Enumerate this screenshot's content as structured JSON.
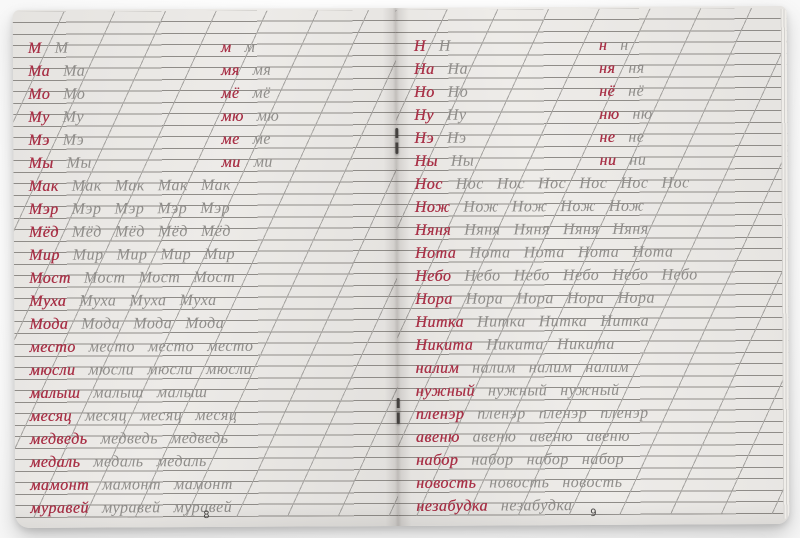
{
  "colors": {
    "red_ink": "#a93147",
    "gray_ink": "#8f8d8a",
    "rule_line": "#8f8c88",
    "slant_line": "#a7a5a2",
    "page_number_color": "#4b4947"
  },
  "book": {
    "description": "Open cursive handwriting practice notebook, letters М and Н",
    "pages": [
      {
        "page_number": "8",
        "rows": [
          {
            "main": {
              "word": "М",
              "copies": 1
            },
            "aside": {
              "word": "м",
              "copies": 1
            }
          },
          {
            "main": {
              "word": "Ма",
              "copies": 1
            },
            "aside": {
              "word": "мя",
              "copies": 1
            }
          },
          {
            "main": {
              "word": "Мо",
              "copies": 1
            },
            "aside": {
              "word": "мё",
              "copies": 1
            }
          },
          {
            "main": {
              "word": "Му",
              "copies": 1
            },
            "aside": {
              "word": "мю",
              "copies": 1
            }
          },
          {
            "main": {
              "word": "Мэ",
              "copies": 1
            },
            "aside": {
              "word": "ме",
              "copies": 1
            }
          },
          {
            "main": {
              "word": "Мы",
              "copies": 1
            },
            "aside": {
              "word": "ми",
              "copies": 1
            }
          },
          {
            "main": {
              "word": "Мак",
              "copies": 4
            }
          },
          {
            "main": {
              "word": "Мэр",
              "copies": 4
            }
          },
          {
            "main": {
              "word": "Мёд",
              "copies": 4
            }
          },
          {
            "main": {
              "word": "Мир",
              "copies": 4
            }
          },
          {
            "main": {
              "word": "Мост",
              "copies": 3
            }
          },
          {
            "main": {
              "word": "Муха",
              "copies": 3
            }
          },
          {
            "main": {
              "word": "Мода",
              "copies": 3
            }
          },
          {
            "main": {
              "word": "место",
              "copies": 3
            }
          },
          {
            "main": {
              "word": "мюсли",
              "copies": 3
            }
          },
          {
            "main": {
              "word": "малыш",
              "copies": 2
            }
          },
          {
            "main": {
              "word": "месяц",
              "copies": 3
            }
          },
          {
            "main": {
              "word": "медведь",
              "copies": 2
            }
          },
          {
            "main": {
              "word": "медаль",
              "copies": 2
            }
          },
          {
            "main": {
              "word": "мамонт",
              "copies": 2
            }
          },
          {
            "main": {
              "word": "муравей",
              "copies": 2
            }
          }
        ]
      },
      {
        "page_number": "9",
        "rows": [
          {
            "main": {
              "word": "Н",
              "copies": 1
            },
            "aside": {
              "word": "н",
              "copies": 1
            }
          },
          {
            "main": {
              "word": "На",
              "copies": 1
            },
            "aside": {
              "word": "ня",
              "copies": 1
            }
          },
          {
            "main": {
              "word": "Но",
              "copies": 1
            },
            "aside": {
              "word": "нё",
              "copies": 1
            }
          },
          {
            "main": {
              "word": "Ну",
              "copies": 1
            },
            "aside": {
              "word": "ню",
              "copies": 1
            }
          },
          {
            "main": {
              "word": "Нэ",
              "copies": 1
            },
            "aside": {
              "word": "не",
              "copies": 1
            }
          },
          {
            "main": {
              "word": "Ны",
              "copies": 1
            },
            "aside": {
              "word": "ни",
              "copies": 1
            }
          },
          {
            "main": {
              "word": "Нос",
              "copies": 6
            }
          },
          {
            "main": {
              "word": "Нож",
              "copies": 4
            }
          },
          {
            "main": {
              "word": "Няня",
              "copies": 4
            }
          },
          {
            "main": {
              "word": "Нота",
              "copies": 4
            }
          },
          {
            "main": {
              "word": "Небо",
              "copies": 5
            }
          },
          {
            "main": {
              "word": "Нора",
              "copies": 4
            }
          },
          {
            "main": {
              "word": "Нитка",
              "copies": 3
            }
          },
          {
            "main": {
              "word": "Никита",
              "copies": 2
            }
          },
          {
            "main": {
              "word": "налим",
              "copies": 3
            }
          },
          {
            "main": {
              "word": "нужный",
              "copies": 2
            }
          },
          {
            "main": {
              "word": "пленэр",
              "copies": 3
            }
          },
          {
            "main": {
              "word": "авеню",
              "copies": 3
            }
          },
          {
            "main": {
              "word": "набор",
              "copies": 3
            }
          },
          {
            "main": {
              "word": "новость",
              "copies": 2
            }
          },
          {
            "main": {
              "word": "незабудка",
              "copies": 1
            }
          }
        ]
      }
    ]
  }
}
